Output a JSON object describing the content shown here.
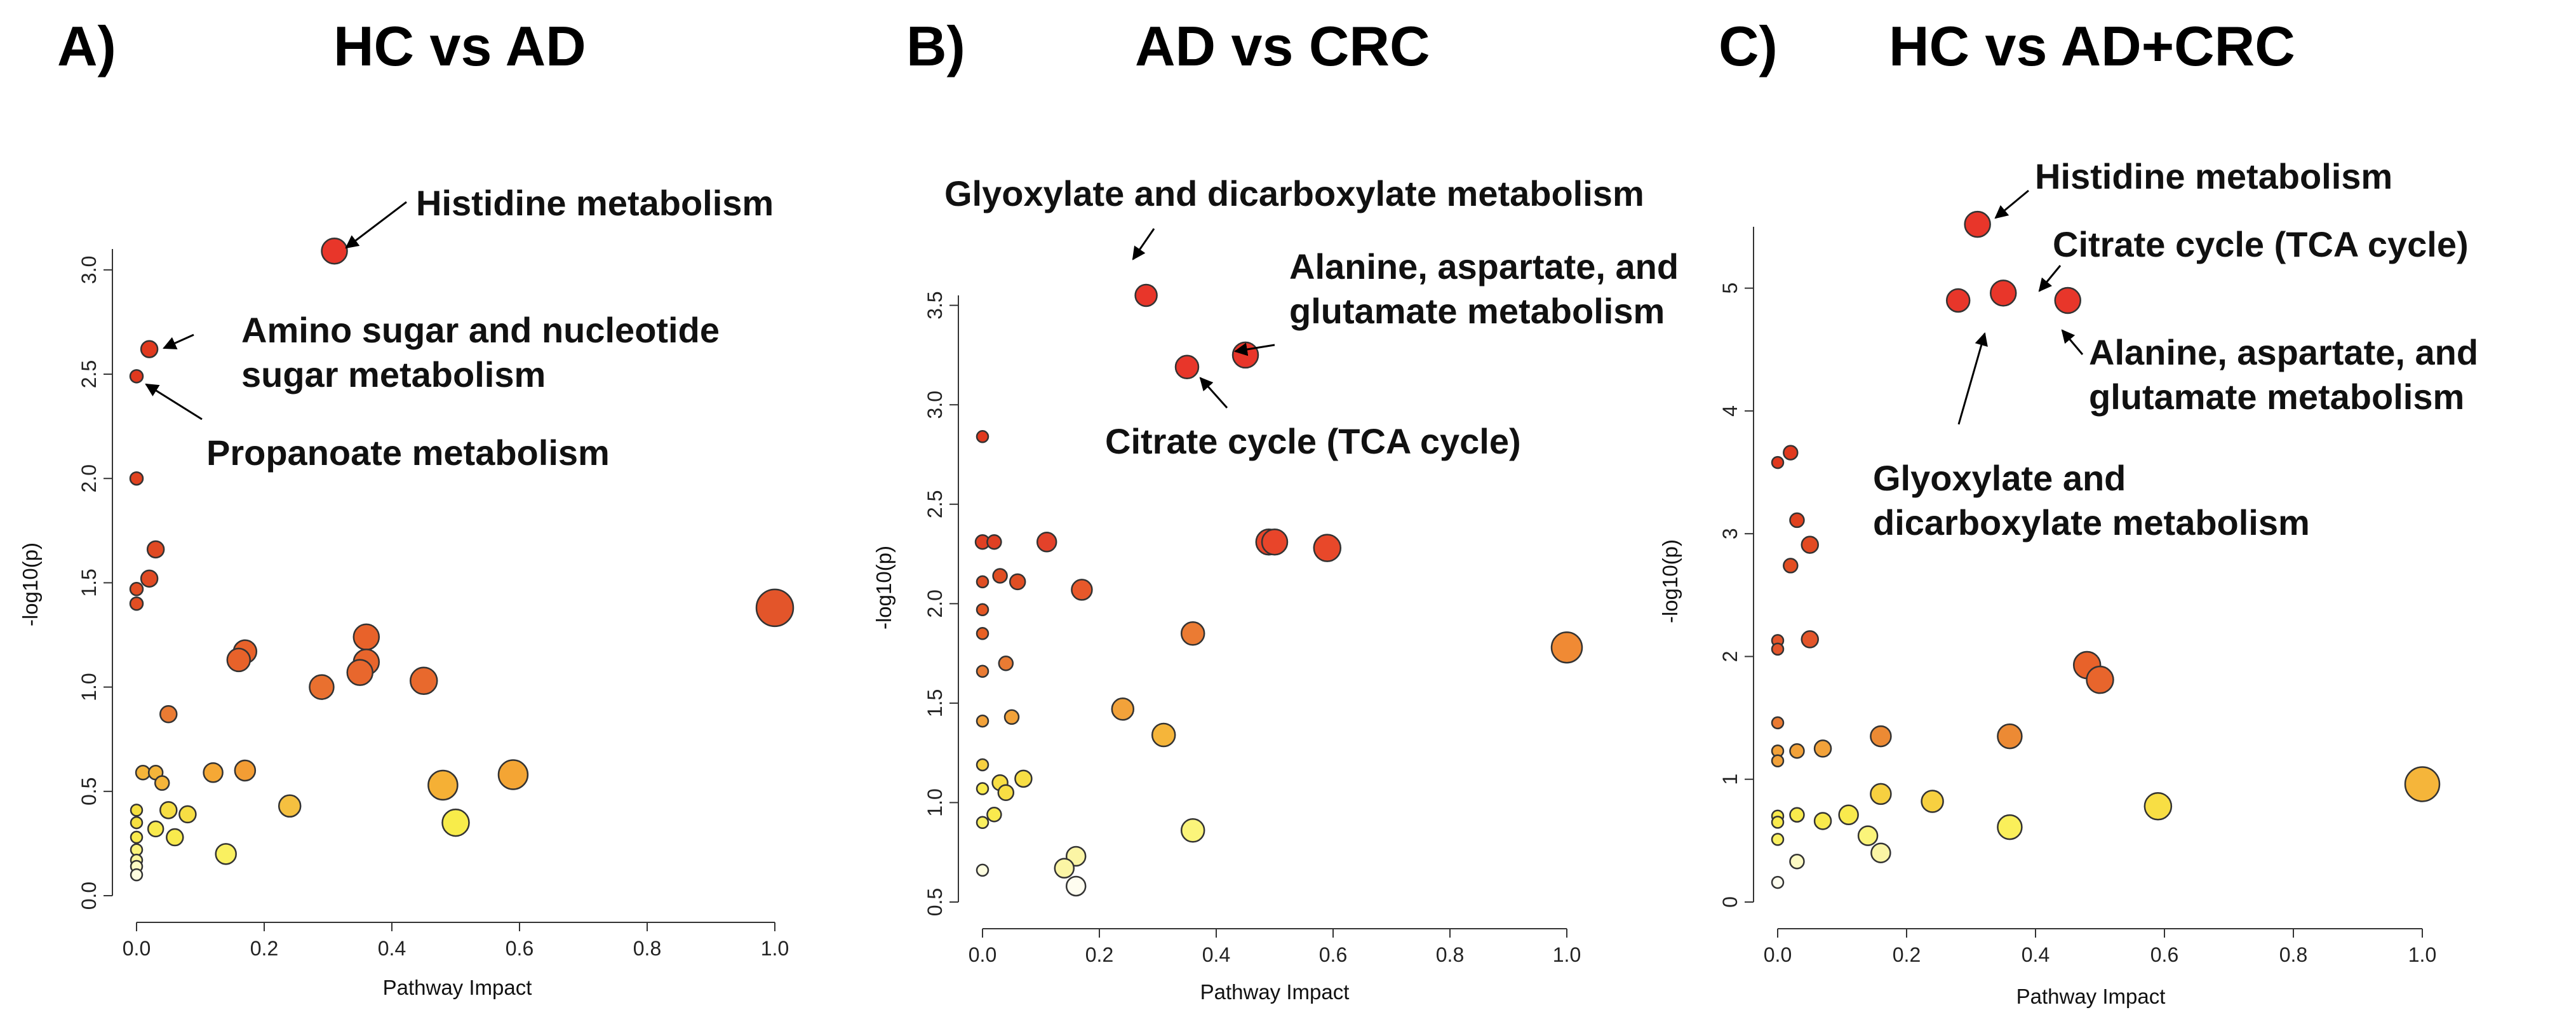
{
  "chart_data": [
    {
      "type": "scatter",
      "panel_label": "A)",
      "title": "HC vs AD",
      "xlabel": "Pathway Impact",
      "ylabel": "-log10(p)",
      "xlim": [
        0,
        1
      ],
      "ylim": [
        0,
        3.1
      ],
      "xticks": [
        "0.0",
        "0.2",
        "0.4",
        "0.6",
        "0.8",
        "1.0"
      ],
      "yticks": [
        "0.0",
        "0.5",
        "1.0",
        "1.5",
        "2.0",
        "2.5",
        "3.0"
      ],
      "points": [
        {
          "x": 0.31,
          "y": 3.09,
          "color": "#e8362a",
          "r": 20
        },
        {
          "x": 0.02,
          "y": 2.62,
          "color": "#e0391e",
          "r": 13
        },
        {
          "x": 0.0,
          "y": 2.49,
          "color": "#e0391e",
          "r": 10
        },
        {
          "x": 0.0,
          "y": 2.0,
          "color": "#e1421f",
          "r": 10
        },
        {
          "x": 0.03,
          "y": 1.66,
          "color": "#e04a23",
          "r": 13
        },
        {
          "x": 0.02,
          "y": 1.52,
          "color": "#e04a23",
          "r": 13
        },
        {
          "x": 0.0,
          "y": 1.47,
          "color": "#e24e23",
          "r": 10
        },
        {
          "x": 0.0,
          "y": 1.4,
          "color": "#e24e23",
          "r": 10
        },
        {
          "x": 1.0,
          "y": 1.38,
          "color": "#e3552a",
          "r": 29
        },
        {
          "x": 0.36,
          "y": 1.24,
          "color": "#e8622a",
          "r": 20
        },
        {
          "x": 0.17,
          "y": 1.17,
          "color": "#e8622a",
          "r": 18
        },
        {
          "x": 0.16,
          "y": 1.13,
          "color": "#e8622a",
          "r": 18
        },
        {
          "x": 0.36,
          "y": 1.12,
          "color": "#e8652c",
          "r": 20
        },
        {
          "x": 0.35,
          "y": 1.07,
          "color": "#e8672d",
          "r": 20
        },
        {
          "x": 0.45,
          "y": 1.03,
          "color": "#e8692d",
          "r": 21
        },
        {
          "x": 0.29,
          "y": 1.0,
          "color": "#e9702f",
          "r": 19
        },
        {
          "x": 0.05,
          "y": 0.87,
          "color": "#ea7b33",
          "r": 13
        },
        {
          "x": 0.59,
          "y": 0.58,
          "color": "#f4a534",
          "r": 23
        },
        {
          "x": 0.48,
          "y": 0.53,
          "color": "#f5b035",
          "r": 23
        },
        {
          "x": 0.12,
          "y": 0.59,
          "color": "#f5a835",
          "r": 15
        },
        {
          "x": 0.17,
          "y": 0.6,
          "color": "#f39d34",
          "r": 16
        },
        {
          "x": 0.01,
          "y": 0.59,
          "color": "#f5b53a",
          "r": 11
        },
        {
          "x": 0.03,
          "y": 0.59,
          "color": "#f5b53a",
          "r": 11
        },
        {
          "x": 0.04,
          "y": 0.54,
          "color": "#f5b53a",
          "r": 11
        },
        {
          "x": 0.24,
          "y": 0.43,
          "color": "#f5c040",
          "r": 17
        },
        {
          "x": 0.5,
          "y": 0.35,
          "color": "#f8ec4a",
          "r": 21
        },
        {
          "x": 0.05,
          "y": 0.41,
          "color": "#f7de44",
          "r": 13
        },
        {
          "x": 0.08,
          "y": 0.39,
          "color": "#f7de44",
          "r": 13
        },
        {
          "x": 0.0,
          "y": 0.41,
          "color": "#f6e040",
          "r": 9
        },
        {
          "x": 0.0,
          "y": 0.35,
          "color": "#f6e040",
          "r": 9
        },
        {
          "x": 0.03,
          "y": 0.32,
          "color": "#f9ea4d",
          "r": 12
        },
        {
          "x": 0.06,
          "y": 0.28,
          "color": "#f9ea4d",
          "r": 13
        },
        {
          "x": 0.0,
          "y": 0.28,
          "color": "#f9ea4d",
          "r": 9
        },
        {
          "x": 0.14,
          "y": 0.2,
          "color": "#faf060",
          "r": 16
        },
        {
          "x": 0.0,
          "y": 0.22,
          "color": "#fbf47a",
          "r": 9
        },
        {
          "x": 0.0,
          "y": 0.17,
          "color": "#fcf79c",
          "r": 9
        },
        {
          "x": 0.0,
          "y": 0.14,
          "color": "#fdfac4",
          "r": 9
        },
        {
          "x": 0.0,
          "y": 0.1,
          "color": "#fefde0",
          "r": 9
        }
      ],
      "annotations": [
        {
          "text": "Histidine metabolism"
        },
        {
          "text": "Amino sugar and nucleotide",
          "text2": "sugar metabolism"
        },
        {
          "text": "Propanoate metabolism"
        }
      ]
    },
    {
      "type": "scatter",
      "panel_label": "B)",
      "title": "AD vs CRC",
      "xlabel": "Pathway Impact",
      "ylabel": "-log10(p)",
      "xlim": [
        0,
        1
      ],
      "ylim": [
        0.5,
        3.55
      ],
      "xticks": [
        "0.0",
        "0.2",
        "0.4",
        "0.6",
        "0.8",
        "1.0"
      ],
      "yticks": [
        "0.5",
        "1.0",
        "1.5",
        "2.0",
        "2.5",
        "3.0",
        "3.5"
      ],
      "points": [
        {
          "x": 0.28,
          "y": 3.55,
          "color": "#e8362a",
          "r": 17
        },
        {
          "x": 0.45,
          "y": 3.25,
          "color": "#e8362a",
          "r": 20
        },
        {
          "x": 0.35,
          "y": 3.19,
          "color": "#e8362a",
          "r": 18
        },
        {
          "x": 0.0,
          "y": 2.84,
          "color": "#e0391e",
          "r": 9
        },
        {
          "x": 0.0,
          "y": 2.31,
          "color": "#e04023",
          "r": 11
        },
        {
          "x": 0.02,
          "y": 2.31,
          "color": "#e04023",
          "r": 11
        },
        {
          "x": 0.11,
          "y": 2.31,
          "color": "#e3422a",
          "r": 15
        },
        {
          "x": 0.49,
          "y": 2.31,
          "color": "#e8452a",
          "r": 20
        },
        {
          "x": 0.5,
          "y": 2.31,
          "color": "#e8452a",
          "r": 20
        },
        {
          "x": 0.59,
          "y": 2.28,
          "color": "#e8482a",
          "r": 21
        },
        {
          "x": 0.03,
          "y": 2.14,
          "color": "#e04e23",
          "r": 11
        },
        {
          "x": 0.06,
          "y": 2.11,
          "color": "#e04e23",
          "r": 12
        },
        {
          "x": 0.0,
          "y": 2.11,
          "color": "#e04e23",
          "r": 9
        },
        {
          "x": 0.17,
          "y": 2.07,
          "color": "#e8582a",
          "r": 16
        },
        {
          "x": 0.0,
          "y": 1.97,
          "color": "#e45623",
          "r": 9
        },
        {
          "x": 0.36,
          "y": 1.85,
          "color": "#eb7b33",
          "r": 18
        },
        {
          "x": 1.0,
          "y": 1.78,
          "color": "#f08a34",
          "r": 24
        },
        {
          "x": 0.0,
          "y": 1.85,
          "color": "#e86023",
          "r": 9
        },
        {
          "x": 0.04,
          "y": 1.7,
          "color": "#ea7b33",
          "r": 11
        },
        {
          "x": 0.0,
          "y": 1.66,
          "color": "#ea7b33",
          "r": 9
        },
        {
          "x": 0.24,
          "y": 1.47,
          "color": "#f2a23a",
          "r": 17
        },
        {
          "x": 0.05,
          "y": 1.43,
          "color": "#f2a23a",
          "r": 11
        },
        {
          "x": 0.0,
          "y": 1.41,
          "color": "#f2a23a",
          "r": 9
        },
        {
          "x": 0.31,
          "y": 1.34,
          "color": "#f5b53a",
          "r": 18
        },
        {
          "x": 0.07,
          "y": 1.12,
          "color": "#f8de44",
          "r": 13
        },
        {
          "x": 0.03,
          "y": 1.1,
          "color": "#f8de44",
          "r": 12
        },
        {
          "x": 0.04,
          "y": 1.05,
          "color": "#f8de44",
          "r": 12
        },
        {
          "x": 0.0,
          "y": 1.19,
          "color": "#f7d040",
          "r": 9
        },
        {
          "x": 0.0,
          "y": 1.07,
          "color": "#f9ea4d",
          "r": 9
        },
        {
          "x": 0.02,
          "y": 0.94,
          "color": "#f9ea4d",
          "r": 11
        },
        {
          "x": 0.0,
          "y": 0.9,
          "color": "#faf060",
          "r": 9
        },
        {
          "x": 0.36,
          "y": 0.86,
          "color": "#fbf47a",
          "r": 18
        },
        {
          "x": 0.16,
          "y": 0.73,
          "color": "#fbf5a5",
          "r": 15
        },
        {
          "x": 0.14,
          "y": 0.67,
          "color": "#fbf5a5",
          "r": 15
        },
        {
          "x": 0.0,
          "y": 0.66,
          "color": "#fefde0",
          "r": 9
        },
        {
          "x": 0.16,
          "y": 0.58,
          "color": "#fefdf0",
          "r": 15
        }
      ],
      "annotations": [
        {
          "text": "Glyoxylate and dicarboxylate metabolism"
        },
        {
          "text": "Alanine, aspartate, and",
          "text2": "glutamate metabolism"
        },
        {
          "text": "Citrate cycle (TCA cycle)"
        }
      ]
    },
    {
      "type": "scatter",
      "panel_label": "C)",
      "title": "HC vs AD+CRC",
      "xlabel": "Pathway Impact",
      "ylabel": "-log10(p)",
      "xlim": [
        0,
        1
      ],
      "ylim": [
        0,
        5.5
      ],
      "xticks": [
        "0.0",
        "0.2",
        "0.4",
        "0.6",
        "0.8",
        "1.0"
      ],
      "yticks": [
        "0",
        "1",
        "2",
        "3",
        "4",
        "5"
      ],
      "points": [
        {
          "x": 0.31,
          "y": 5.52,
          "color": "#e8362a",
          "r": 20
        },
        {
          "x": 0.35,
          "y": 4.96,
          "color": "#e8362a",
          "r": 20
        },
        {
          "x": 0.28,
          "y": 4.9,
          "color": "#e8362a",
          "r": 18
        },
        {
          "x": 0.45,
          "y": 4.9,
          "color": "#e8362a",
          "r": 20
        },
        {
          "x": 0.02,
          "y": 3.66,
          "color": "#e0391e",
          "r": 11
        },
        {
          "x": 0.0,
          "y": 3.58,
          "color": "#e0391e",
          "r": 9
        },
        {
          "x": 0.03,
          "y": 3.11,
          "color": "#e0421f",
          "r": 11
        },
        {
          "x": 0.05,
          "y": 2.91,
          "color": "#e24a23",
          "r": 13
        },
        {
          "x": 0.02,
          "y": 2.74,
          "color": "#e24e23",
          "r": 11
        },
        {
          "x": 0.05,
          "y": 2.14,
          "color": "#e3552a",
          "r": 13
        },
        {
          "x": 0.0,
          "y": 2.13,
          "color": "#e3552a",
          "r": 9
        },
        {
          "x": 0.0,
          "y": 2.06,
          "color": "#e3552a",
          "r": 9
        },
        {
          "x": 0.48,
          "y": 1.93,
          "color": "#e8622a",
          "r": 21
        },
        {
          "x": 0.5,
          "y": 1.81,
          "color": "#e8652c",
          "r": 21
        },
        {
          "x": 0.0,
          "y": 1.46,
          "color": "#ea7b33",
          "r": 9
        },
        {
          "x": 0.16,
          "y": 1.35,
          "color": "#ec8a34",
          "r": 16
        },
        {
          "x": 0.36,
          "y": 1.35,
          "color": "#ec8a34",
          "r": 19
        },
        {
          "x": 0.07,
          "y": 1.25,
          "color": "#f2a23a",
          "r": 13
        },
        {
          "x": 0.03,
          "y": 1.23,
          "color": "#f2a23a",
          "r": 11
        },
        {
          "x": 0.0,
          "y": 1.23,
          "color": "#f2a23a",
          "r": 9
        },
        {
          "x": 0.0,
          "y": 1.15,
          "color": "#f2a23a",
          "r": 9
        },
        {
          "x": 1.0,
          "y": 0.96,
          "color": "#f5b53a",
          "r": 27
        },
        {
          "x": 0.16,
          "y": 0.88,
          "color": "#f7d040",
          "r": 16
        },
        {
          "x": 0.24,
          "y": 0.82,
          "color": "#f7d040",
          "r": 17
        },
        {
          "x": 0.59,
          "y": 0.78,
          "color": "#f8de44",
          "r": 21
        },
        {
          "x": 0.11,
          "y": 0.71,
          "color": "#f9ea4d",
          "r": 15
        },
        {
          "x": 0.07,
          "y": 0.66,
          "color": "#f9ea4d",
          "r": 13
        },
        {
          "x": 0.03,
          "y": 0.71,
          "color": "#f9ea4d",
          "r": 11
        },
        {
          "x": 0.0,
          "y": 0.7,
          "color": "#f9ea4d",
          "r": 9
        },
        {
          "x": 0.0,
          "y": 0.65,
          "color": "#f9ea4d",
          "r": 9
        },
        {
          "x": 0.36,
          "y": 0.61,
          "color": "#faef5a",
          "r": 19
        },
        {
          "x": 0.0,
          "y": 0.51,
          "color": "#faf060",
          "r": 9
        },
        {
          "x": 0.14,
          "y": 0.54,
          "color": "#fbf47a",
          "r": 15
        },
        {
          "x": 0.16,
          "y": 0.4,
          "color": "#fbf5a5",
          "r": 15
        },
        {
          "x": 0.03,
          "y": 0.33,
          "color": "#fdfac4",
          "r": 11
        },
        {
          "x": 0.0,
          "y": 0.16,
          "color": "#fefdf0",
          "r": 9
        }
      ],
      "annotations": [
        {
          "text": "Histidine metabolism"
        },
        {
          "text": "Citrate cycle (TCA cycle)"
        },
        {
          "text": "Alanine, aspartate, and",
          "text2": "glutamate metabolism"
        },
        {
          "text": "Glyoxylate and",
          "text2": "dicarboxylate metabolism"
        }
      ]
    }
  ]
}
